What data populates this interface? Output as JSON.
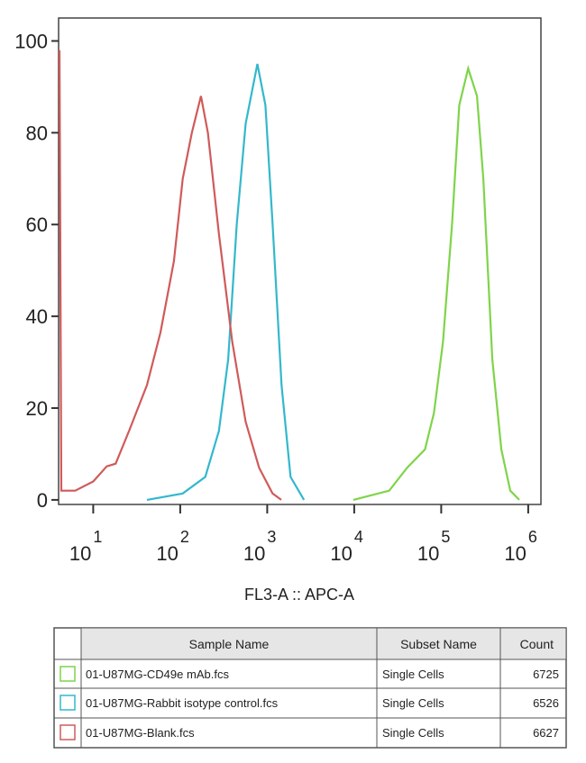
{
  "chart_data": {
    "type": "line",
    "log_x": true,
    "x_label": "FL3-A :: APC-A",
    "xlim": [
      4,
      1400000
    ],
    "ylim": [
      -1,
      105
    ],
    "xticks": [
      {
        "value": 10,
        "label": "10",
        "exponent": "1"
      },
      {
        "value": 100,
        "label": "10",
        "exponent": "2"
      },
      {
        "value": 1000,
        "label": "10",
        "exponent": "3"
      },
      {
        "value": 10000,
        "label": "10",
        "exponent": "4"
      },
      {
        "value": 100000,
        "label": "10",
        "exponent": "5"
      },
      {
        "value": 1000000,
        "label": "10",
        "exponent": "6"
      }
    ],
    "yticks": [
      0,
      20,
      40,
      60,
      80,
      100
    ],
    "table_columns": [
      "Sample Name",
      "Subset Name",
      "Count"
    ],
    "series": [
      {
        "name": "01-U87MG-CD49e mAb.fcs",
        "subset": "Single Cells",
        "count": 6725,
        "color": "#7fd44a",
        "x": [
          9770,
          25240,
          40550,
          65160,
          82700,
          105000,
          133000,
          161000,
          204000,
          258000,
          305000,
          387000,
          491000,
          622000,
          789000
        ],
        "values": [
          0,
          2,
          7,
          11,
          19,
          34.5,
          60,
          86,
          94,
          88,
          70,
          30.6,
          11,
          2,
          0
        ]
      },
      {
        "name": "01-U87MG-Rabbit isotype control.fcs",
        "subset": "Single Cells",
        "count": 6526,
        "color": "#33b8cc",
        "x": [
          41.5,
          107,
          194,
          278,
          356,
          446,
          566,
          771,
          953,
          1154,
          1462,
          1854,
          2649
        ],
        "values": [
          0,
          1.4,
          5,
          15,
          30.6,
          60,
          82,
          95,
          86,
          60,
          25,
          5,
          0
        ]
      },
      {
        "name": "01-U87MG-Blank.fcs",
        "subset": "Single Cells",
        "count": 6627,
        "color": "#d05a5a",
        "x": [
          4.1,
          4.3,
          6.2,
          10,
          14.3,
          18.1,
          25.8,
          41.5,
          59.3,
          84.6,
          107,
          136,
          173,
          208,
          278,
          396,
          565,
          806,
          1150,
          1450
        ],
        "values": [
          98,
          2,
          2,
          4,
          7.3,
          7.9,
          15,
          25,
          36.5,
          52,
          70,
          80,
          88,
          80,
          58,
          34.5,
          17,
          7,
          1.4,
          0
        ]
      }
    ]
  }
}
